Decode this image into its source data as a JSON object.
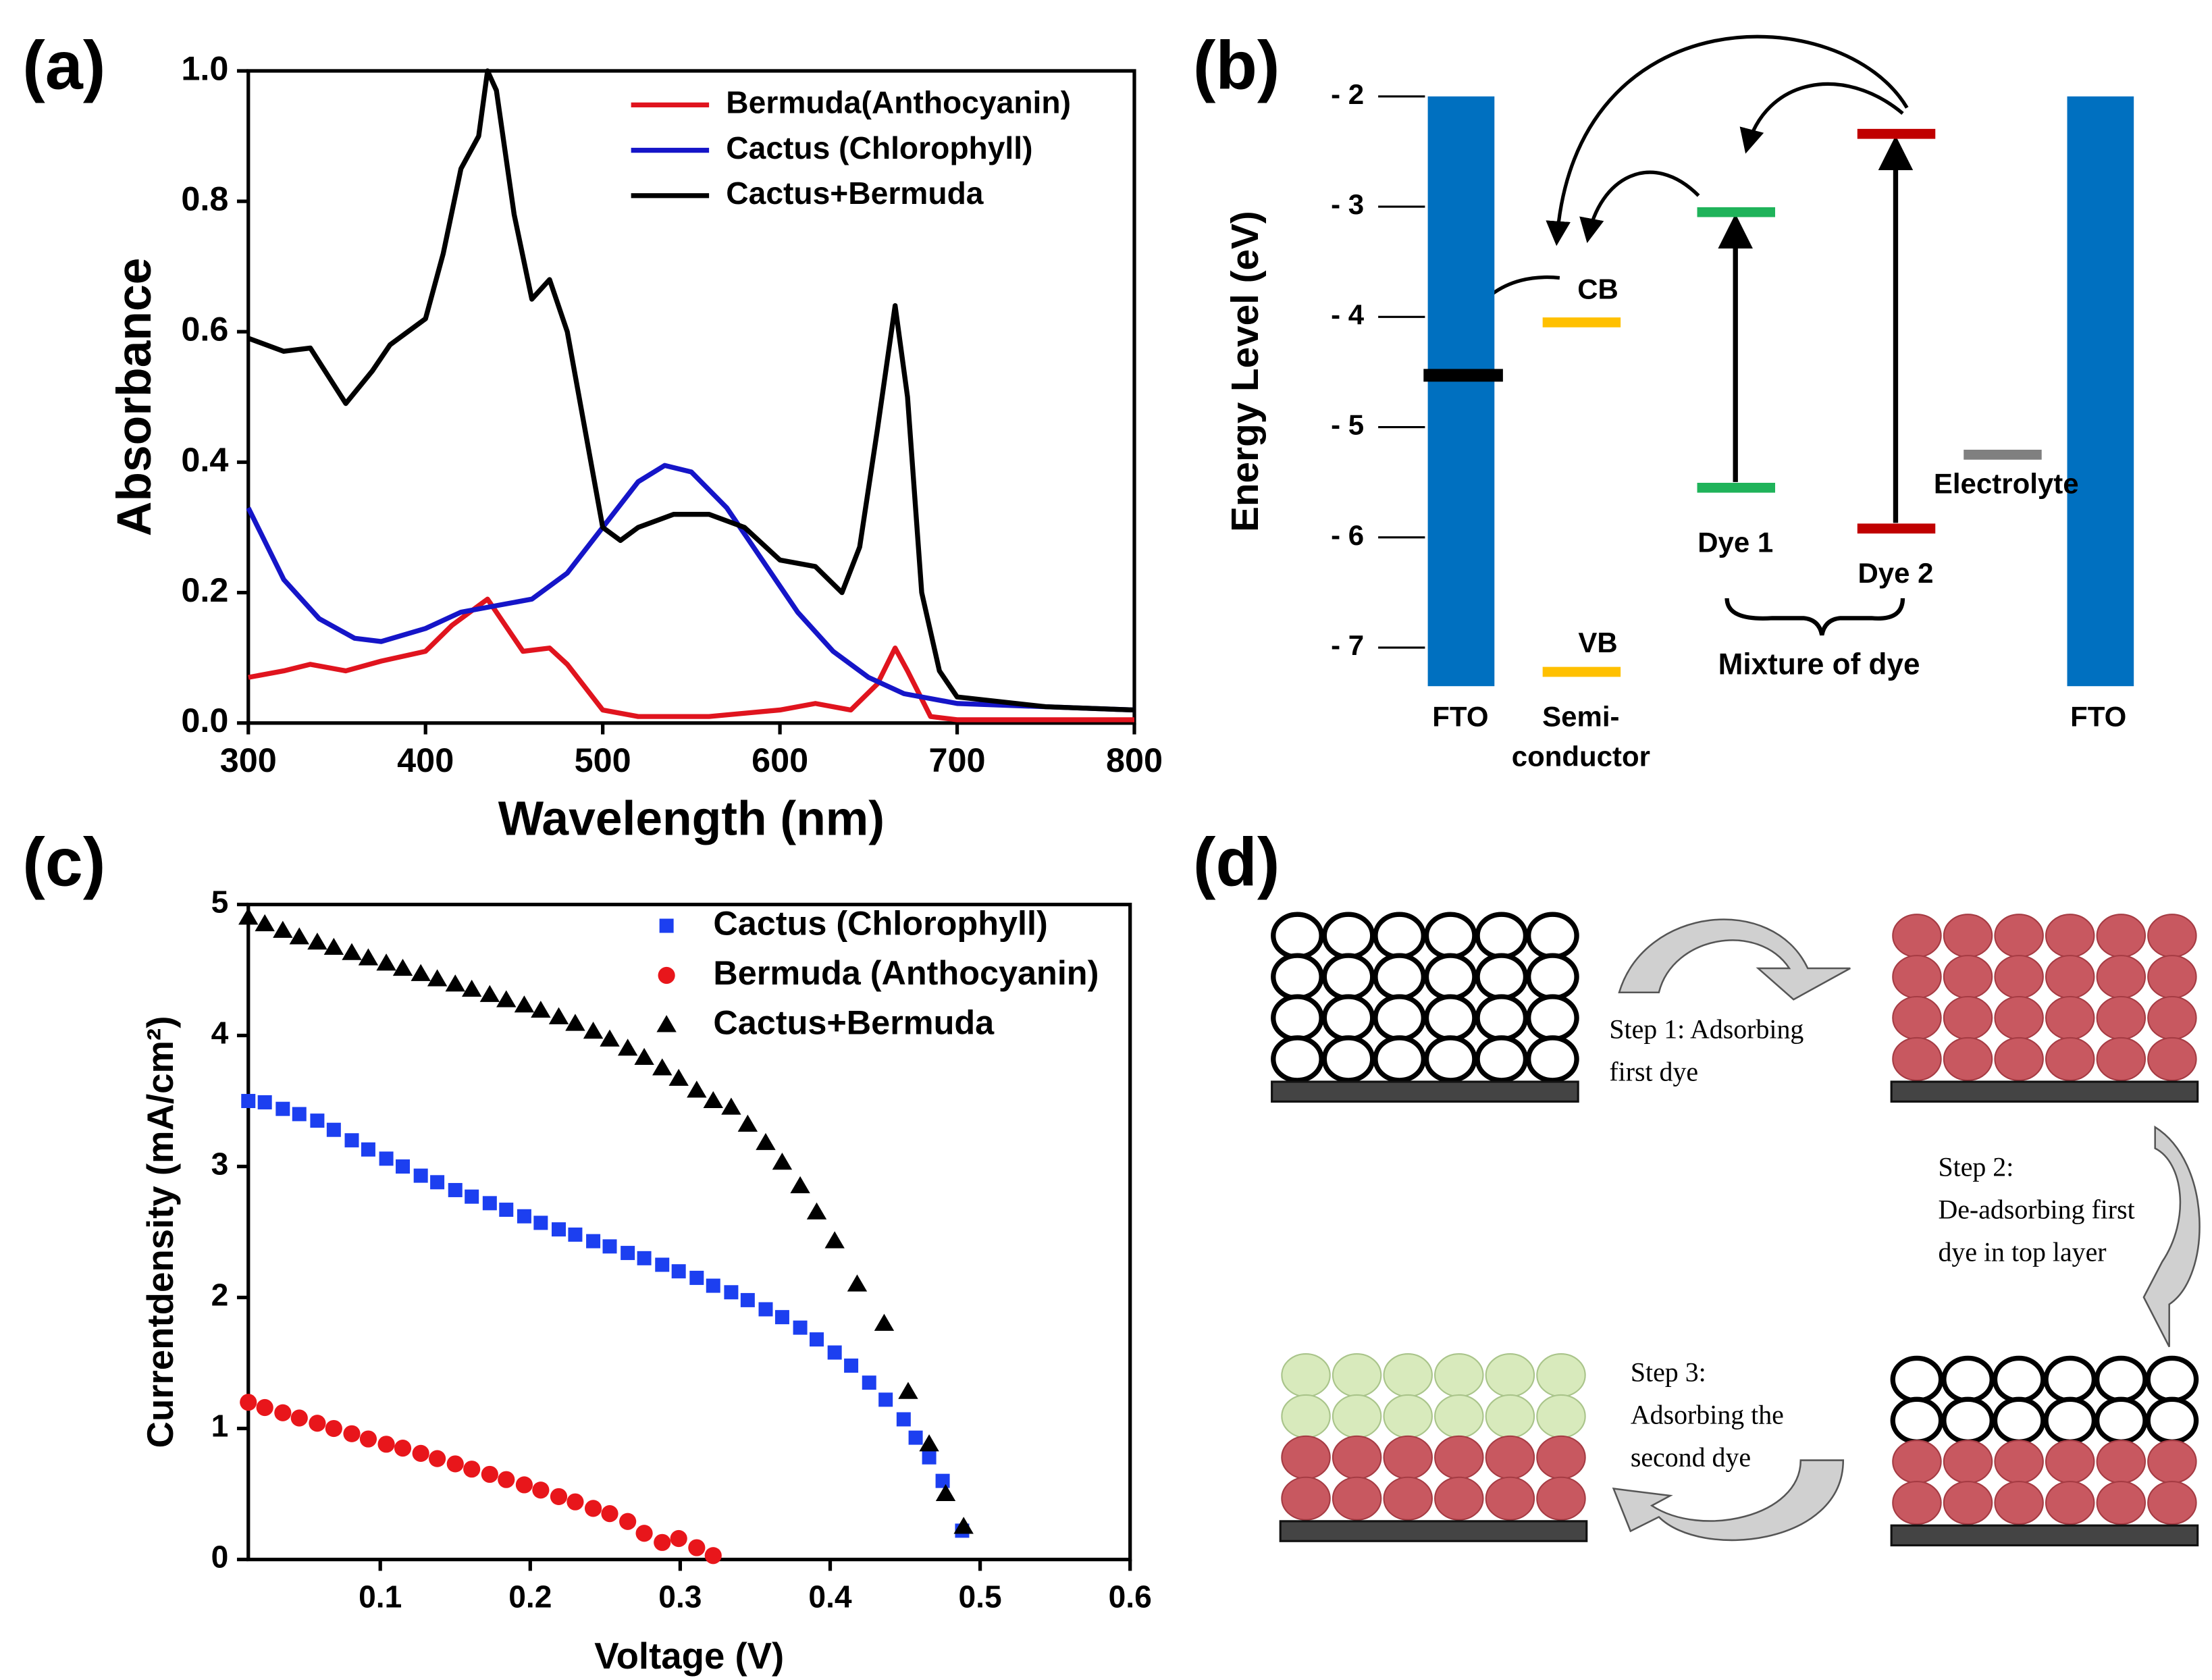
{
  "chart_data": [
    {
      "type": "line",
      "panel_label": "(a)",
      "xlabel": "Wavelength (nm)",
      "ylabel": "Absorbance",
      "xlim": [
        300,
        800
      ],
      "xticks": [
        300,
        400,
        500,
        600,
        700,
        800
      ],
      "ylim": [
        0,
        1
      ],
      "yticks": [
        {
          "value": 0,
          "label": "0.0"
        },
        0.2,
        0.4,
        0.6,
        0.8,
        {
          "value": 1,
          "label": "1.0"
        }
      ],
      "legend": "upper right",
      "series": [
        {
          "name": "Bermuda(Anthocyanin)",
          "color": "#e0141e",
          "x": [
            300,
            320,
            335,
            355,
            375,
            400,
            415,
            425,
            435,
            445,
            455,
            470,
            480,
            500,
            520,
            560,
            600,
            620,
            640,
            655,
            665,
            672,
            685,
            700,
            800
          ],
          "values": [
            0.07,
            0.08,
            0.09,
            0.08,
            0.095,
            0.11,
            0.15,
            0.17,
            0.19,
            0.15,
            0.11,
            0.115,
            0.09,
            0.02,
            0.01,
            0.01,
            0.02,
            0.03,
            0.02,
            0.06,
            0.115,
            0.08,
            0.01,
            0.005,
            0.005
          ]
        },
        {
          "name": "Cactus (Chlorophyll)",
          "color": "#1515c8",
          "x": [
            300,
            320,
            340,
            360,
            375,
            400,
            420,
            440,
            460,
            480,
            500,
            520,
            535,
            550,
            570,
            590,
            610,
            630,
            650,
            670,
            700,
            750,
            800
          ],
          "values": [
            0.33,
            0.22,
            0.16,
            0.13,
            0.125,
            0.145,
            0.17,
            0.18,
            0.19,
            0.23,
            0.3,
            0.37,
            0.395,
            0.385,
            0.33,
            0.25,
            0.17,
            0.11,
            0.07,
            0.045,
            0.03,
            0.025,
            0.02
          ]
        },
        {
          "name": "Cactus+Bermuda",
          "color": "#000000",
          "x": [
            300,
            320,
            335,
            355,
            370,
            380,
            400,
            410,
            420,
            430,
            435,
            440,
            450,
            460,
            470,
            480,
            490,
            500,
            510,
            520,
            540,
            560,
            580,
            600,
            620,
            635,
            645,
            655,
            665,
            672,
            680,
            690,
            700,
            750,
            800
          ],
          "values": [
            0.59,
            0.57,
            0.575,
            0.49,
            0.54,
            0.58,
            0.62,
            0.72,
            0.85,
            0.9,
            1.0,
            0.97,
            0.78,
            0.65,
            0.68,
            0.6,
            0.45,
            0.3,
            0.28,
            0.3,
            0.32,
            0.32,
            0.3,
            0.25,
            0.24,
            0.2,
            0.27,
            0.45,
            0.64,
            0.5,
            0.2,
            0.08,
            0.04,
            0.025,
            0.02
          ]
        }
      ]
    },
    {
      "type": "energy",
      "panel_label": "(b)",
      "ylabel": "Energy Level (eV)",
      "ylim": [
        -7.35,
        -2
      ],
      "yticks": [
        {
          "value": -2,
          "label": "- 2"
        },
        {
          "value": -3,
          "label": "- 3"
        },
        {
          "value": -4,
          "label": "- 4"
        },
        {
          "value": -5,
          "label": "- 5"
        },
        {
          "value": -6,
          "label": "- 6"
        },
        {
          "value": -7,
          "label": "- 7"
        }
      ],
      "electrode_labels": [
        "FTO",
        "FTO"
      ],
      "electrode_color": "#0070c0",
      "fermi_level": {
        "value": -4.53,
        "color": "#000000"
      },
      "semiconductor": {
        "label": [
          "Semi-",
          "conductor"
        ],
        "cb": -4.05,
        "vb": -7.22,
        "cb_label": "CB",
        "vb_label": "VB",
        "color": "#ffc000"
      },
      "dyes": [
        {
          "name": "Dye 1",
          "lumo": -3.05,
          "homo": -5.55,
          "color": "#1fb35a"
        },
        {
          "name": "Dye 2",
          "lumo": -2.34,
          "homo": -5.92,
          "color": "#c00000"
        }
      ],
      "electrolyte": {
        "label": "Electrolyte",
        "value": -5.25,
        "color": "#808080"
      },
      "group_label": "Mixture of dye"
    },
    {
      "type": "scatter",
      "panel_label": "(c)",
      "xlabel": "Voltage (V)",
      "ylabel": "Currentdensity (mA/cm²)",
      "xlim": [
        0.012,
        0.6
      ],
      "xticks": [
        0.1,
        0.2,
        0.3,
        0.4,
        0.5,
        0.6
      ],
      "ylim": [
        0,
        5
      ],
      "yticks": [
        0,
        1,
        2,
        3,
        4,
        5
      ],
      "legend": "upper right",
      "series": [
        {
          "name": "Cactus (Chlorophyll)",
          "color": "#1c3ff0",
          "marker": "square",
          "x": [
            0.012,
            0.023,
            0.035,
            0.046,
            0.058,
            0.069,
            0.081,
            0.092,
            0.104,
            0.115,
            0.127,
            0.138,
            0.15,
            0.161,
            0.173,
            0.184,
            0.196,
            0.207,
            0.219,
            0.23,
            0.242,
            0.253,
            0.265,
            0.276,
            0.288,
            0.299,
            0.311,
            0.322,
            0.334,
            0.345,
            0.357,
            0.368,
            0.38,
            0.391,
            0.403,
            0.414,
            0.426,
            0.437,
            0.449,
            0.457,
            0.466,
            0.475,
            0.488
          ],
          "values": [
            3.5,
            3.49,
            3.44,
            3.4,
            3.35,
            3.28,
            3.2,
            3.13,
            3.06,
            3.0,
            2.93,
            2.88,
            2.82,
            2.77,
            2.72,
            2.67,
            2.62,
            2.57,
            2.52,
            2.48,
            2.43,
            2.39,
            2.34,
            2.3,
            2.25,
            2.2,
            2.15,
            2.09,
            2.04,
            1.98,
            1.91,
            1.85,
            1.77,
            1.68,
            1.58,
            1.48,
            1.35,
            1.22,
            1.07,
            0.93,
            0.78,
            0.6,
            0.22
          ]
        },
        {
          "name": "Bermuda (Anthocyanin)",
          "color": "#e8161b",
          "marker": "circle",
          "x": [
            0.012,
            0.023,
            0.035,
            0.046,
            0.058,
            0.069,
            0.081,
            0.092,
            0.104,
            0.115,
            0.127,
            0.138,
            0.15,
            0.161,
            0.173,
            0.184,
            0.196,
            0.207,
            0.219,
            0.23,
            0.242,
            0.253,
            0.265,
            0.276,
            0.288,
            0.299,
            0.311,
            0.322
          ],
          "values": [
            1.2,
            1.16,
            1.12,
            1.08,
            1.04,
            1.0,
            0.96,
            0.92,
            0.88,
            0.85,
            0.81,
            0.77,
            0.73,
            0.69,
            0.65,
            0.61,
            0.57,
            0.53,
            0.48,
            0.44,
            0.39,
            0.35,
            0.29,
            0.2,
            0.13,
            0.16,
            0.09,
            0.03
          ]
        },
        {
          "name": "Cactus+Bermuda",
          "color": "#000000",
          "marker": "triangle",
          "x": [
            0.012,
            0.023,
            0.035,
            0.046,
            0.058,
            0.069,
            0.081,
            0.092,
            0.104,
            0.115,
            0.127,
            0.138,
            0.15,
            0.161,
            0.173,
            0.184,
            0.196,
            0.207,
            0.219,
            0.23,
            0.242,
            0.253,
            0.265,
            0.276,
            0.288,
            0.299,
            0.311,
            0.322,
            0.334,
            0.345,
            0.357,
            0.368,
            0.38,
            0.391,
            0.403,
            0.418,
            0.436,
            0.452,
            0.466,
            0.477,
            0.489
          ],
          "values": [
            4.9,
            4.85,
            4.8,
            4.75,
            4.71,
            4.67,
            4.63,
            4.59,
            4.55,
            4.51,
            4.47,
            4.43,
            4.39,
            4.35,
            4.31,
            4.27,
            4.23,
            4.19,
            4.14,
            4.09,
            4.03,
            3.97,
            3.9,
            3.83,
            3.75,
            3.67,
            3.58,
            3.5,
            3.45,
            3.32,
            3.18,
            3.03,
            2.85,
            2.65,
            2.43,
            2.1,
            1.8,
            1.28,
            0.88,
            0.5,
            0.25
          ]
        }
      ]
    }
  ],
  "diagram_d": {
    "panel_label": "(d)",
    "steps": [
      [
        "Step 1:  Adsorbing",
        "first dye"
      ],
      [
        "Step 2:",
        "De-adsorbing first",
        "dye  in top layer"
      ],
      [
        "Step 3:",
        "Adsorbing the",
        "second  dye"
      ]
    ]
  }
}
